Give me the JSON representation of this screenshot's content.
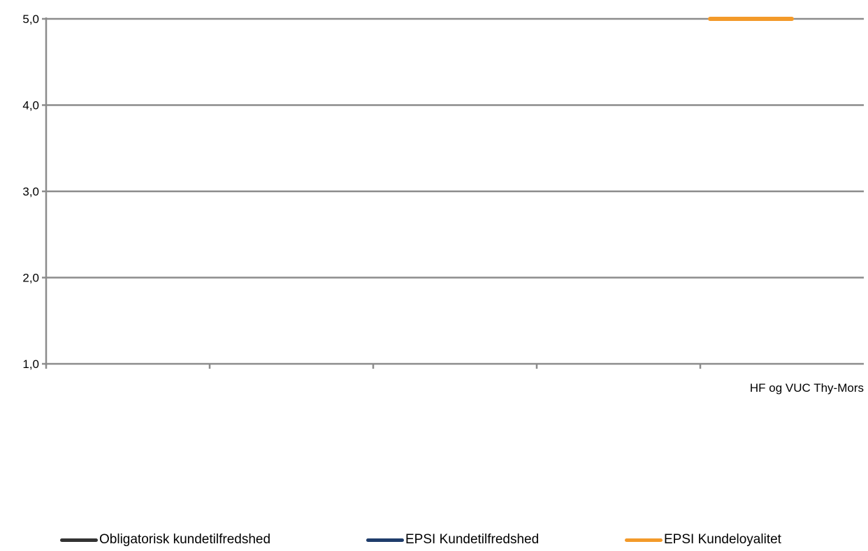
{
  "chart_data": {
    "type": "line",
    "categories": [
      "",
      "",
      "",
      "",
      "HF og VUC Thy-Mors"
    ],
    "ylim": [
      1.0,
      5.0
    ],
    "yticks": [
      "1,0",
      "2,0",
      "3,0",
      "4,0",
      "5,0"
    ],
    "grid": true,
    "legend_position": "bottom",
    "series": [
      {
        "name": "Obligatorisk kundetilfredshed",
        "color": "#333333",
        "values": [
          null,
          null,
          null,
          null,
          null
        ]
      },
      {
        "name": "EPSI Kundetilfredshed",
        "color": "#1f3d6b",
        "values": [
          null,
          null,
          null,
          null,
          null
        ]
      },
      {
        "name": "EPSI Kundeloyalitet",
        "color": "#f39a2a",
        "values": [
          null,
          null,
          null,
          null,
          5.0
        ]
      }
    ]
  }
}
